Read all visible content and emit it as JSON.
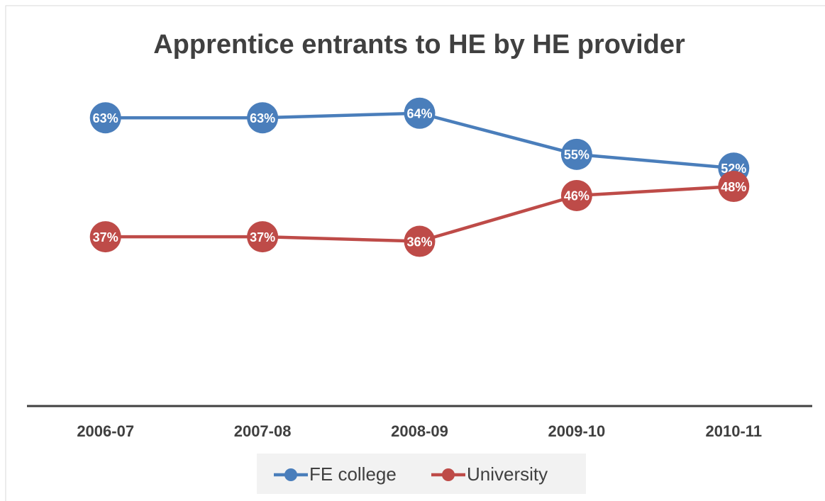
{
  "chart_data": {
    "type": "line",
    "title": "Apprentice entrants to HE by HE provider",
    "categories": [
      "2006-07",
      "2007-08",
      "2008-09",
      "2009-10",
      "2010-11"
    ],
    "series": [
      {
        "name": "FE college",
        "color": "#4a7ebb",
        "values": [
          63,
          63,
          64,
          55,
          52
        ],
        "value_labels": [
          "63%",
          "63%",
          "64%",
          "55%",
          "52%"
        ]
      },
      {
        "name": "University",
        "color": "#be4b48",
        "values": [
          37,
          37,
          36,
          46,
          48
        ],
        "value_labels": [
          "37%",
          "37%",
          "36%",
          "46%",
          "48%"
        ]
      }
    ],
    "ylim": [
      0,
      70
    ],
    "legend": "bottom"
  }
}
